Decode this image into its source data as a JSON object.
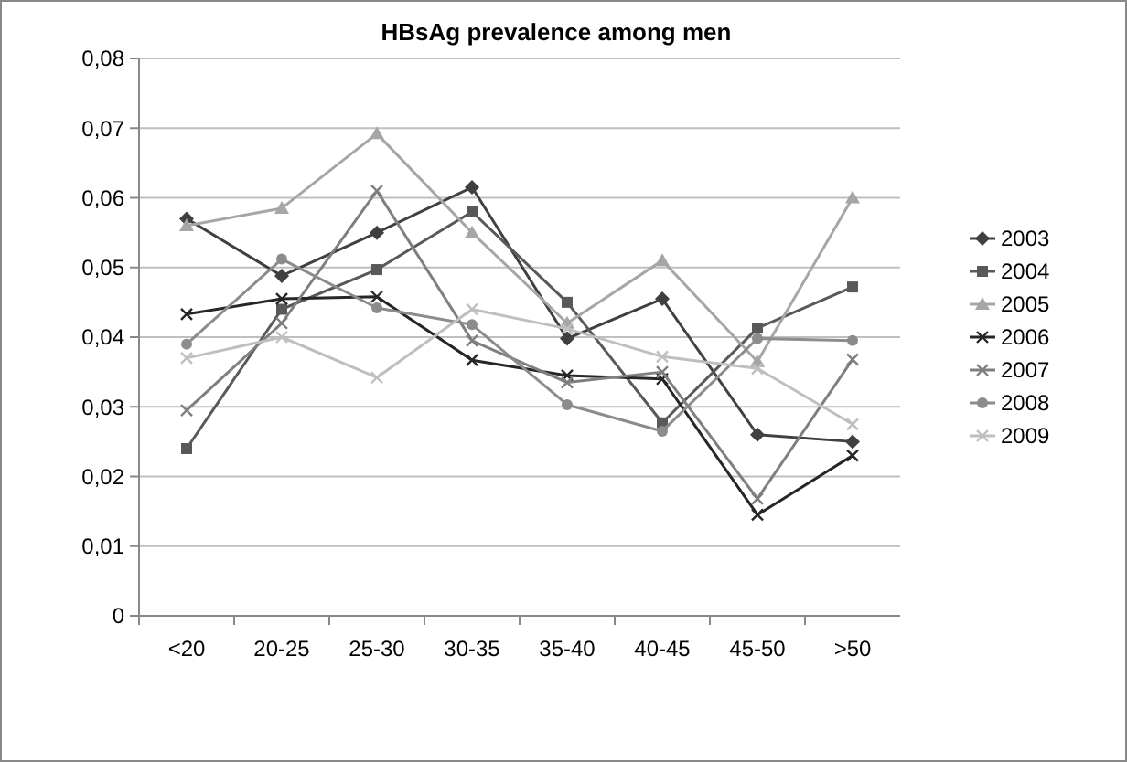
{
  "chart_data": {
    "type": "line",
    "title": "HBsAg prevalence among men",
    "categories": [
      "<20",
      "20-25",
      "25-30",
      "30-35",
      "35-40",
      "40-45",
      "45-50",
      ">50"
    ],
    "series": [
      {
        "name": "2003",
        "color": "#404040",
        "marker": "diamond",
        "values": [
          0.057,
          0.0488,
          0.055,
          0.0615,
          0.0398,
          0.0455,
          0.026,
          0.025
        ]
      },
      {
        "name": "2004",
        "color": "#595959",
        "marker": "square",
        "values": [
          0.024,
          0.044,
          0.0497,
          0.058,
          0.045,
          0.0277,
          0.0413,
          0.0472
        ]
      },
      {
        "name": "2005",
        "color": "#a6a6a6",
        "marker": "triangle",
        "values": [
          0.056,
          0.0585,
          0.0692,
          0.055,
          0.042,
          0.051,
          0.0365,
          0.06
        ]
      },
      {
        "name": "2006",
        "color": "#262626",
        "marker": "cross",
        "values": [
          0.0433,
          0.0455,
          0.0458,
          0.0367,
          0.0345,
          0.034,
          0.0145,
          0.023
        ]
      },
      {
        "name": "2007",
        "color": "#7f7f7f",
        "marker": "cross",
        "values": [
          0.0295,
          0.042,
          0.061,
          0.0395,
          0.0335,
          0.035,
          0.0168,
          0.0368
        ]
      },
      {
        "name": "2008",
        "color": "#8c8c8c",
        "marker": "circle",
        "values": [
          0.039,
          0.0512,
          0.0442,
          0.0418,
          0.0303,
          0.0265,
          0.0398,
          0.0395
        ]
      },
      {
        "name": "2009",
        "color": "#bfbfbf",
        "marker": "cross",
        "values": [
          0.037,
          0.04,
          0.0342,
          0.044,
          0.0412,
          0.0372,
          0.0355,
          0.0275
        ]
      }
    ],
    "ylim": [
      0,
      0.08
    ],
    "yticks": [
      0,
      {
        "value": 0.01,
        "label": "0,01"
      },
      {
        "value": 0.02,
        "label": "0,02"
      },
      {
        "value": 0.03,
        "label": "0,03"
      },
      {
        "value": 0.04,
        "label": "0,04"
      },
      {
        "value": 0.05,
        "label": "0,05"
      },
      {
        "value": 0.06,
        "label": "0,06"
      },
      {
        "value": 0.07,
        "label": "0,07"
      },
      {
        "value": 0.08,
        "label": "0,08"
      }
    ],
    "grid": "y",
    "legend": "right",
    "line_style": "solid"
  }
}
